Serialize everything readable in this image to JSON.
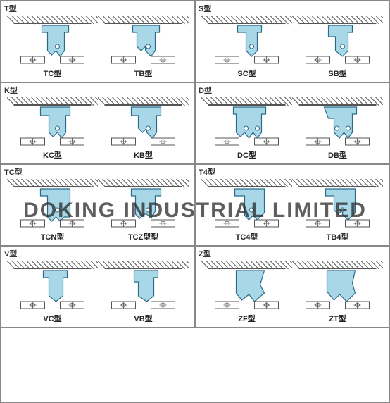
{
  "watermark": "DOKING INDUSTRIAL LIMITED",
  "colors": {
    "seal_fill": "#a8d8e8",
    "seal_stroke": "#2a6a8a",
    "hatch": "#555555",
    "border": "#888888",
    "text": "#222222",
    "bg": "#ffffff"
  },
  "fontsize": {
    "header": 11,
    "label": 11,
    "watermark": 30
  },
  "panels": [
    {
      "header": "T型",
      "items": [
        {
          "label": "TC型",
          "shape": "tc"
        },
        {
          "label": "TB型",
          "shape": "tb"
        }
      ]
    },
    {
      "header": "S型",
      "items": [
        {
          "label": "SC型",
          "shape": "sc"
        },
        {
          "label": "SB型",
          "shape": "sb"
        }
      ]
    },
    {
      "header": "K型",
      "items": [
        {
          "label": "KC型",
          "shape": "kc"
        },
        {
          "label": "KB型",
          "shape": "kb"
        }
      ]
    },
    {
      "header": "D型",
      "items": [
        {
          "label": "DC型",
          "shape": "dc"
        },
        {
          "label": "DB型",
          "shape": "db"
        }
      ]
    },
    {
      "header": "TC型",
      "items": [
        {
          "label": "TCN型",
          "shape": "tcn"
        },
        {
          "label": "TCZ型型",
          "shape": "tcz"
        }
      ]
    },
    {
      "header": "T4型",
      "items": [
        {
          "label": "TC4型",
          "shape": "tc4"
        },
        {
          "label": "TB4型",
          "shape": "tb4"
        }
      ]
    },
    {
      "header": "V型",
      "items": [
        {
          "label": "VC型",
          "shape": "vc"
        },
        {
          "label": "VB型",
          "shape": "vb"
        }
      ]
    },
    {
      "header": "Z型",
      "items": [
        {
          "label": "ZF型",
          "shape": "zf"
        },
        {
          "label": "ZT型",
          "shape": "zt"
        }
      ]
    }
  ]
}
